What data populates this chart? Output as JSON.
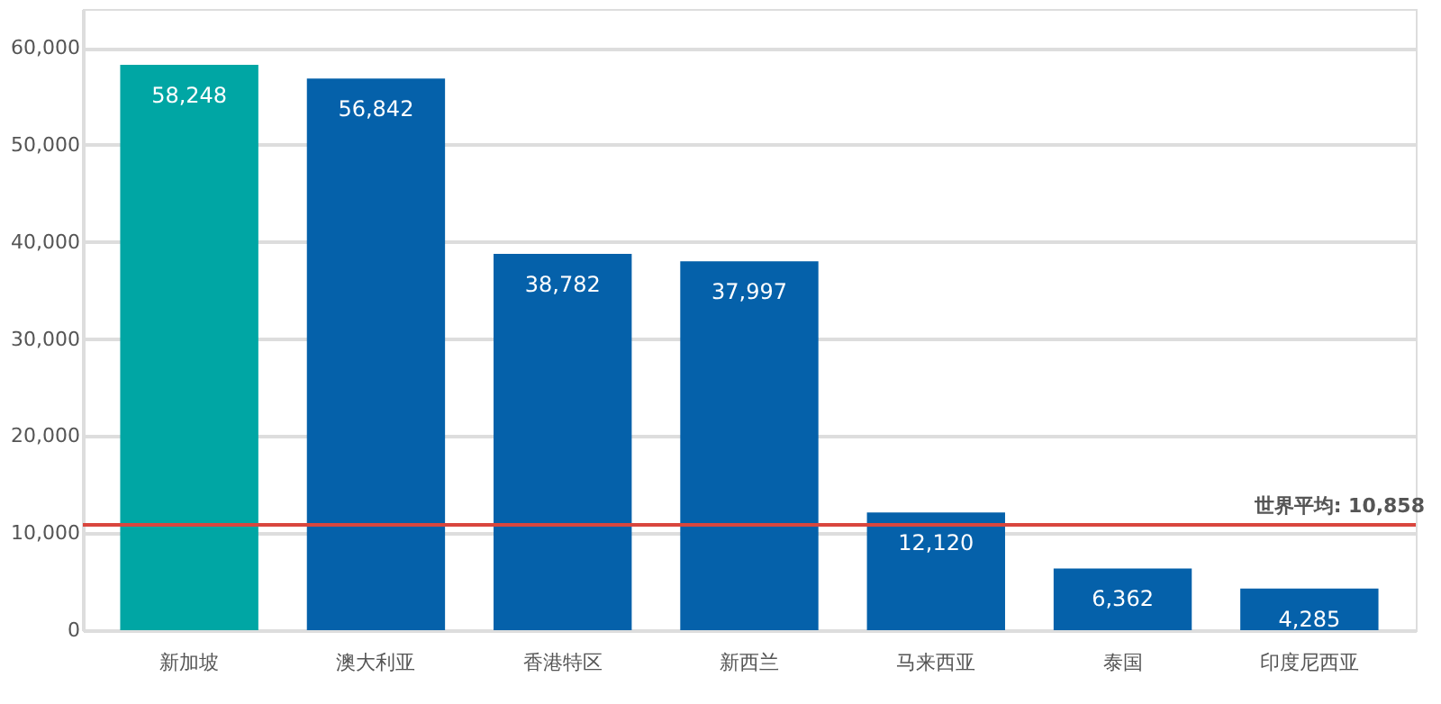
{
  "chart_data": {
    "type": "bar",
    "categories": [
      "新加坡",
      "澳大利亚",
      "香港特区",
      "新西兰",
      "马来西亚",
      "泰国",
      "印度尼西亚"
    ],
    "values": [
      58248,
      56842,
      38782,
      37997,
      12120,
      6362,
      4285
    ],
    "colors": [
      "#00a6a4",
      "#0561aa",
      "#0561aa",
      "#0561aa",
      "#0561aa",
      "#0561aa",
      "#0561aa"
    ],
    "value_labels": [
      "58,248",
      "56,842",
      "38,782",
      "37,997",
      "12,120",
      "6,362",
      "4,285"
    ],
    "ylim": [
      0,
      64000
    ],
    "yticks": [
      0,
      {
        "value": 10000,
        "label": "10,000"
      },
      {
        "value": 20000,
        "label": "20,000"
      },
      {
        "value": 30000,
        "label": "30,000"
      },
      {
        "value": 40000,
        "label": "40,000"
      },
      {
        "value": 50000,
        "label": "50,000"
      },
      {
        "value": 60000,
        "label": "60,000"
      }
    ],
    "grid": "y",
    "ref_lines": [
      {
        "axis": "y",
        "value": 10858,
        "label": "世界平均: 10,858",
        "color": "#d9463e"
      }
    ]
  }
}
